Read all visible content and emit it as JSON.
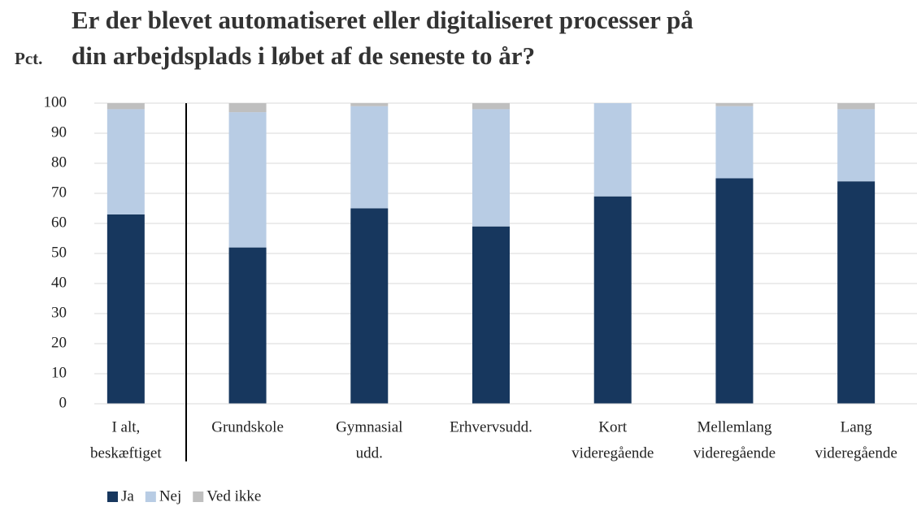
{
  "chart_data": {
    "type": "stacked_bar",
    "title": [
      "Er der blevet automatiseret eller digitaliseret processer på",
      "din arbejdsplads i løbet af de seneste to år?"
    ],
    "y_label": "Pct.",
    "categories": [
      [
        "I alt,",
        "beskæftiget"
      ],
      [
        "Grundskole"
      ],
      [
        "Gymnasial",
        "udd."
      ],
      [
        "Erhvervsudd."
      ],
      [
        "Kort",
        "videregående"
      ],
      [
        "Mellemlang",
        "videregående"
      ],
      [
        "Lang",
        "videregående"
      ]
    ],
    "series": [
      {
        "name": "Ja",
        "color": "#17375e",
        "values": [
          63,
          52,
          65,
          59,
          69,
          75,
          74
        ]
      },
      {
        "name": "Nej",
        "color": "#b8cce4",
        "values": [
          35,
          45,
          34,
          39,
          31,
          24,
          24
        ]
      },
      {
        "name": "Ved ikke",
        "color": "#bfbfbf",
        "values": [
          2,
          3,
          1,
          2,
          0,
          1,
          2
        ]
      }
    ],
    "ylim": [
      0,
      100
    ],
    "yticks": [
      0,
      10,
      20,
      30,
      40,
      50,
      60,
      70,
      80,
      90,
      100
    ],
    "grid": true
  }
}
